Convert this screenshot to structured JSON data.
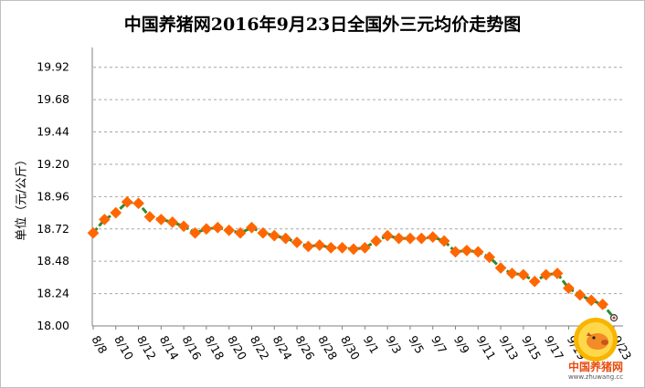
{
  "chart_data": {
    "type": "line",
    "title": "中国养猪网2016年9月23日全国外三元均价走势图",
    "ylabel": "单位（元/公斤）",
    "xlabel": "",
    "ylim": [
      18.0,
      20.04
    ],
    "yticks": [
      "18.00",
      "18.24",
      "18.48",
      "18.72",
      "18.96",
      "19.20",
      "19.44",
      "19.68",
      "19.92"
    ],
    "x_tick_labels": [
      "8/8",
      "8/10",
      "8/12",
      "8/14",
      "8/16",
      "8/18",
      "8/20",
      "8/22",
      "8/24",
      "8/26",
      "8/28",
      "8/30",
      "9/1",
      "9/3",
      "9/5",
      "9/7",
      "9/9",
      "9/11",
      "9/13",
      "9/15",
      "9/17",
      "9/19",
      "9/21",
      "9/23"
    ],
    "grid": true,
    "series": [
      {
        "name": "",
        "color": "#2e8b2e",
        "marker_color": "#ff6600",
        "x": [
          "8/8",
          "8/9",
          "8/10",
          "8/11",
          "8/12",
          "8/13",
          "8/14",
          "8/15",
          "8/16",
          "8/17",
          "8/18",
          "8/19",
          "8/20",
          "8/21",
          "8/22",
          "8/23",
          "8/24",
          "8/25",
          "8/26",
          "8/27",
          "8/28",
          "8/29",
          "8/30",
          "8/31",
          "9/1",
          "9/2",
          "9/3",
          "9/4",
          "9/5",
          "9/6",
          "9/7",
          "9/8",
          "9/9",
          "9/10",
          "9/11",
          "9/12",
          "9/13",
          "9/14",
          "9/15",
          "9/16",
          "9/17",
          "9/18",
          "9/19",
          "9/20",
          "9/21",
          "9/22",
          "9/23"
        ],
        "values": [
          18.69,
          18.79,
          18.84,
          18.92,
          18.91,
          18.81,
          18.79,
          18.77,
          18.74,
          18.69,
          18.72,
          18.73,
          18.71,
          18.69,
          18.73,
          18.69,
          18.67,
          18.65,
          18.62,
          18.59,
          18.6,
          18.58,
          18.58,
          18.57,
          18.58,
          18.63,
          18.67,
          18.65,
          18.65,
          18.65,
          18.66,
          18.63,
          18.55,
          18.56,
          18.55,
          18.51,
          18.43,
          18.39,
          18.38,
          18.33,
          18.38,
          18.39,
          18.28,
          18.23,
          18.19,
          18.16,
          18.06
        ]
      }
    ]
  },
  "logo": {
    "text": "中国养猪网",
    "url": "www.zhuwang.cc"
  }
}
